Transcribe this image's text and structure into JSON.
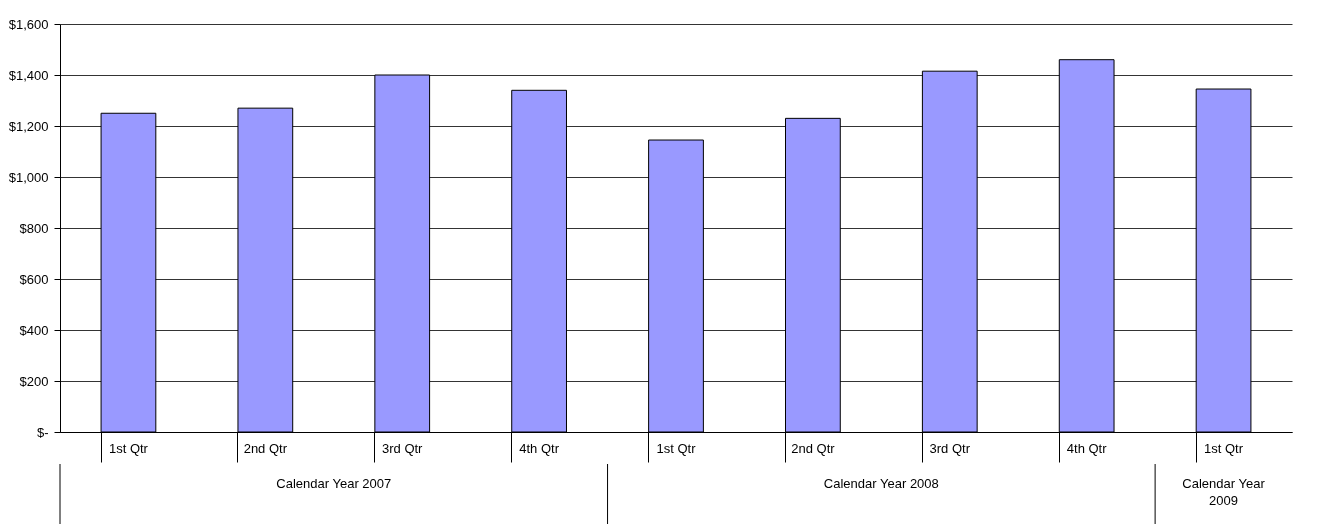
{
  "chart_data": {
    "type": "bar",
    "categories": [
      "1st Qtr",
      "2nd Qtr",
      "3rd Qtr",
      "4th Qtr",
      "1st Qtr",
      "2nd Qtr",
      "3rd Qtr",
      "4th Qtr",
      "1st Qtr"
    ],
    "values": [
      1250,
      1270,
      1400,
      1340,
      1145,
      1230,
      1415,
      1460,
      1345
    ],
    "color": "#9999ff",
    "ylim": [
      0,
      1600
    ],
    "yticks": [
      {
        "value": 0,
        "label": "$-"
      },
      {
        "value": 200,
        "label": "$200"
      },
      {
        "value": 400,
        "label": "$400"
      },
      {
        "value": 600,
        "label": "$600"
      },
      {
        "value": 800,
        "label": "$800"
      },
      {
        "value": 1000,
        "label": "$1,000"
      },
      {
        "value": 1200,
        "label": "$1,200"
      },
      {
        "value": 1400,
        "label": "$1,400"
      },
      {
        "value": 1600,
        "label": "$1,600"
      }
    ],
    "grid": "y",
    "annotations": [
      "Calendar Year 2007",
      "Calendar Year 2008",
      "Calendar Year 2009"
    ]
  }
}
